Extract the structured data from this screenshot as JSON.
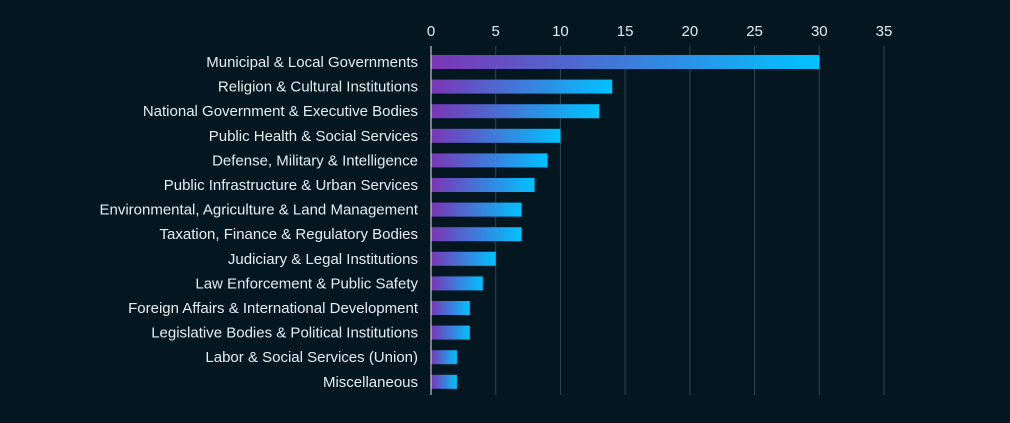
{
  "chart_data": {
    "type": "bar",
    "orientation": "horizontal",
    "title": "",
    "xlabel": "",
    "ylabel": "",
    "xlim": [
      0,
      35
    ],
    "x_ticks": [
      0,
      5,
      10,
      15,
      20,
      25,
      30,
      35
    ],
    "x_axis_position": "top",
    "grid": true,
    "legend": "none",
    "colors": {
      "bar_start": "#7b35b5",
      "bar_end": "#00c3ff",
      "background": "#041721",
      "text": "#e6edf2",
      "grid": "#2f4452"
    },
    "categories": [
      "Municipal & Local Governments",
      "Religion & Cultural Institutions",
      "National Government & Executive Bodies",
      "Public Health & Social Services",
      "Defense, Military & Intelligence",
      "Public Infrastructure & Urban Services",
      "Environmental, Agriculture & Land Management",
      "Taxation,  Finance & Regulatory Bodies",
      "Judiciary & Legal Institutions",
      "Law Enforcement & Public Safety",
      "Foreign Affairs & International Development",
      "Legislative Bodies & Political Institutions",
      "Labor & Social Services (Union)",
      "Miscellaneous"
    ],
    "values": [
      30,
      14,
      13,
      10,
      9,
      8,
      7,
      7,
      5,
      4,
      3,
      3,
      2,
      2
    ]
  }
}
